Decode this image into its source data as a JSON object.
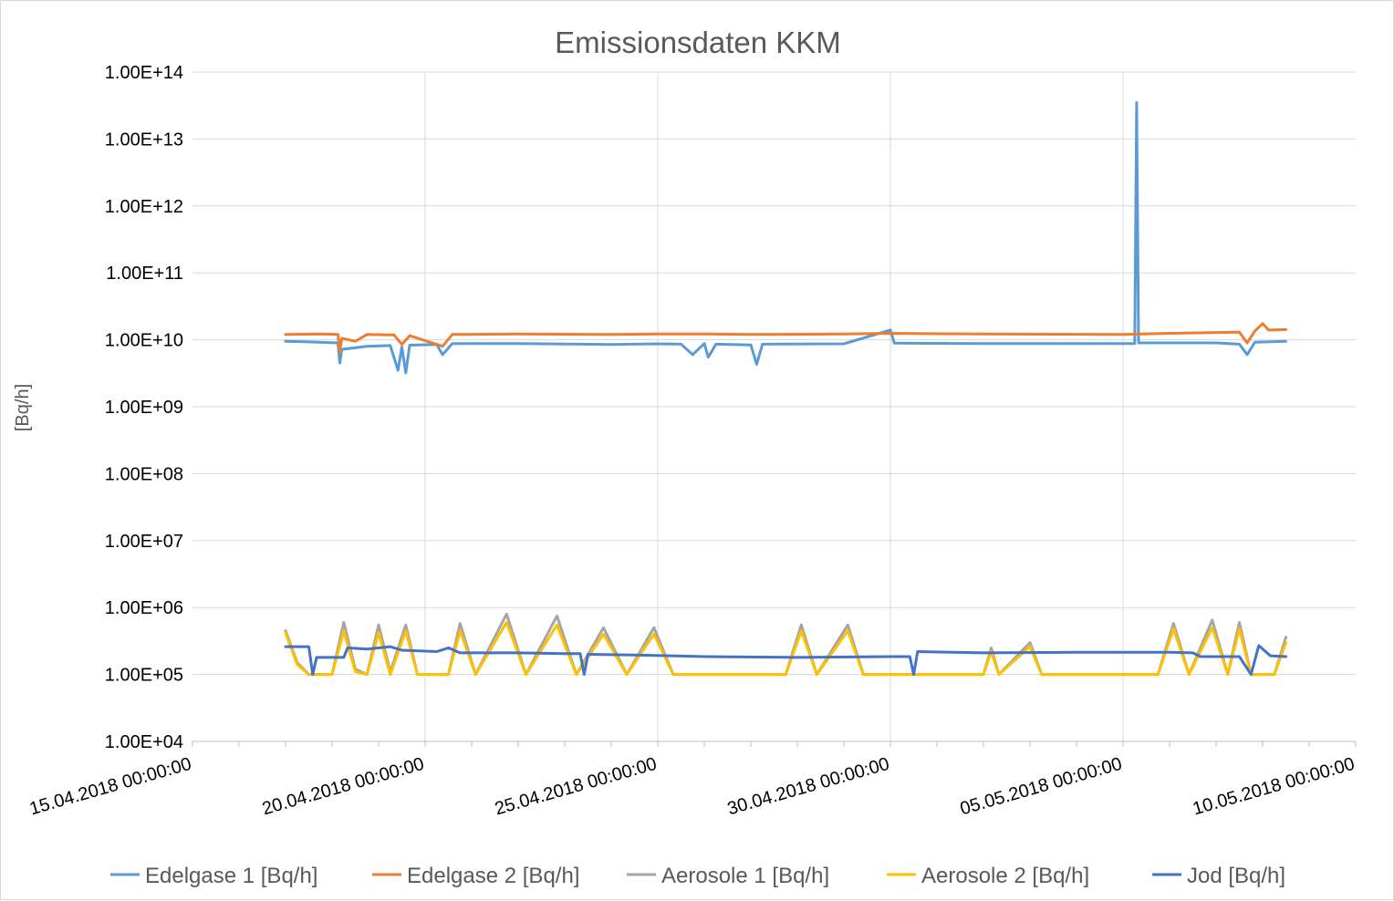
{
  "chart_data": {
    "type": "line",
    "title": "Emissionsdaten KKM",
    "xlabel": "",
    "ylabel": "[Bq/h]",
    "y_scale": "log",
    "ylim": [
      10000,
      100000000000000
    ],
    "y_tick_labels": [
      "1.00E+04",
      "1.00E+05",
      "1.00E+06",
      "1.00E+07",
      "1.00E+08",
      "1.00E+09",
      "1.00E+10",
      "1.00E+11",
      "1.00E+12",
      "1.00E+13",
      "1.00E+14"
    ],
    "x_tick_labels": [
      "15.04.2018 00:00:00",
      "20.04.2018 00:00:00",
      "25.04.2018 00:00:00",
      "30.04.2018 00:00:00",
      "05.05.2018 00:00:00",
      "10.05.2018 00:00:00"
    ],
    "x_range": [
      "2018-04-15",
      "2018-05-10"
    ],
    "grid": true,
    "legend_position": "bottom",
    "series": [
      {
        "name": "Edelgase 1 [Bq/h]",
        "color": "#5b9bd5",
        "points": [
          [
            "2018-04-17 00:00",
            9500000000.0
          ],
          [
            "2018-04-17 12:00",
            9300000000.0
          ],
          [
            "2018-04-18 03:00",
            9000000000.0
          ],
          [
            "2018-04-18 04:00",
            4500000000.0
          ],
          [
            "2018-04-18 05:00",
            7200000000.0
          ],
          [
            "2018-04-18 18:00",
            8000000000.0
          ],
          [
            "2018-04-19 06:00",
            8200000000.0
          ],
          [
            "2018-04-19 10:00",
            3500000000.0
          ],
          [
            "2018-04-19 12:00",
            7800000000.0
          ],
          [
            "2018-04-19 14:00",
            3200000000.0
          ],
          [
            "2018-04-19 16:00",
            8300000000.0
          ],
          [
            "2018-04-20 06:00",
            8500000000.0
          ],
          [
            "2018-04-20 09:00",
            6000000000.0
          ],
          [
            "2018-04-20 14:00",
            8800000000.0
          ],
          [
            "2018-04-22 00:00",
            8800000000.0
          ],
          [
            "2018-04-24 00:00",
            8500000000.0
          ],
          [
            "2018-04-25 00:00",
            8700000000.0
          ],
          [
            "2018-04-25 12:00",
            8600000000.0
          ],
          [
            "2018-04-25 18:00",
            6000000000.0
          ],
          [
            "2018-04-26 00:00",
            8800000000.0
          ],
          [
            "2018-04-26 02:00",
            5500000000.0
          ],
          [
            "2018-04-26 06:00",
            8600000000.0
          ],
          [
            "2018-04-27 00:00",
            8400000000.0
          ],
          [
            "2018-04-27 03:00",
            4300000000.0
          ],
          [
            "2018-04-27 06:00",
            8600000000.0
          ],
          [
            "2018-04-29 00:00",
            8700000000.0
          ],
          [
            "2018-04-30 00:00",
            14000000000.0
          ],
          [
            "2018-04-30 02:00",
            8900000000.0
          ],
          [
            "2018-05-02 00:00",
            8800000000.0
          ],
          [
            "2018-05-05 06:00",
            8800000000.0
          ],
          [
            "2018-05-05 07:00",
            35000000000000.0
          ],
          [
            "2018-05-05 08:00",
            9000000000.0
          ],
          [
            "2018-05-07 00:00",
            9000000000.0
          ],
          [
            "2018-05-07 12:00",
            8600000000.0
          ],
          [
            "2018-05-07 16:00",
            6000000000.0
          ],
          [
            "2018-05-07 20:00",
            9200000000.0
          ],
          [
            "2018-05-08 12:00",
            9500000000.0
          ]
        ]
      },
      {
        "name": "Edelgase 2 [Bq/h]",
        "color": "#ed7d31",
        "points": [
          [
            "2018-04-17 00:00",
            12000000000.0
          ],
          [
            "2018-04-17 18:00",
            12200000000.0
          ],
          [
            "2018-04-18 03:00",
            12000000000.0
          ],
          [
            "2018-04-18 04:00",
            6500000000.0
          ],
          [
            "2018-04-18 05:00",
            10500000000.0
          ],
          [
            "2018-04-18 12:00",
            9500000000.0
          ],
          [
            "2018-04-18 18:00",
            12000000000.0
          ],
          [
            "2018-04-19 08:00",
            11800000000.0
          ],
          [
            "2018-04-19 12:00",
            8500000000.0
          ],
          [
            "2018-04-19 16:00",
            11500000000.0
          ],
          [
            "2018-04-20 09:00",
            8000000000.0
          ],
          [
            "2018-04-20 14:00",
            12000000000.0
          ],
          [
            "2018-04-22 00:00",
            12200000000.0
          ],
          [
            "2018-04-24 00:00",
            12000000000.0
          ],
          [
            "2018-04-25 00:00",
            12200000000.0
          ],
          [
            "2018-04-26 00:00",
            12200000000.0
          ],
          [
            "2018-04-27 00:00",
            12000000000.0
          ],
          [
            "2018-04-29 00:00",
            12200000000.0
          ],
          [
            "2018-04-30 00:00",
            12500000000.0
          ],
          [
            "2018-05-02 00:00",
            12200000000.0
          ],
          [
            "2018-05-05 00:00",
            12000000000.0
          ],
          [
            "2018-05-06 00:00",
            12500000000.0
          ],
          [
            "2018-05-07 12:00",
            13000000000.0
          ],
          [
            "2018-05-07 16:00",
            9000000000.0
          ],
          [
            "2018-05-07 20:00",
            13500000000.0
          ],
          [
            "2018-05-08 00:00",
            17500000000.0
          ],
          [
            "2018-05-08 03:00",
            14000000000.0
          ],
          [
            "2018-05-08 12:00",
            14200000000.0
          ]
        ]
      },
      {
        "name": "Aerosole 1 [Bq/h]",
        "color": "#a5a5a5",
        "points": [
          [
            "2018-04-17 00:00",
            450000.0
          ],
          [
            "2018-04-17 06:00",
            150000.0
          ],
          [
            "2018-04-17 12:00",
            100000.0
          ],
          [
            "2018-04-18 00:00",
            100000.0
          ],
          [
            "2018-04-18 06:00",
            600000.0
          ],
          [
            "2018-04-18 12:00",
            120000.0
          ],
          [
            "2018-04-18 18:00",
            100000.0
          ],
          [
            "2018-04-19 00:00",
            550000.0
          ],
          [
            "2018-04-19 06:00",
            110000.0
          ],
          [
            "2018-04-19 14:00",
            550000.0
          ],
          [
            "2018-04-19 20:00",
            100000.0
          ],
          [
            "2018-04-20 12:00",
            100000.0
          ],
          [
            "2018-04-20 18:00",
            580000.0
          ],
          [
            "2018-04-21 02:00",
            100000.0
          ],
          [
            "2018-04-21 18:00",
            800000.0
          ],
          [
            "2018-04-22 04:00",
            100000.0
          ],
          [
            "2018-04-22 20:00",
            750000.0
          ],
          [
            "2018-04-23 06:00",
            100000.0
          ],
          [
            "2018-04-23 20:00",
            500000.0
          ],
          [
            "2018-04-24 08:00",
            100000.0
          ],
          [
            "2018-04-24 22:00",
            500000.0
          ],
          [
            "2018-04-25 08:00",
            100000.0
          ],
          [
            "2018-04-27 18:00",
            100000.0
          ],
          [
            "2018-04-28 02:00",
            550000.0
          ],
          [
            "2018-04-28 10:00",
            100000.0
          ],
          [
            "2018-04-29 02:00",
            550000.0
          ],
          [
            "2018-04-29 10:00",
            100000.0
          ],
          [
            "2018-05-02 00:00",
            100000.0
          ],
          [
            "2018-05-02 04:00",
            250000.0
          ],
          [
            "2018-05-02 08:00",
            100000.0
          ],
          [
            "2018-05-03 00:00",
            300000.0
          ],
          [
            "2018-05-03 06:00",
            100000.0
          ],
          [
            "2018-05-05 18:00",
            100000.0
          ],
          [
            "2018-05-06 02:00",
            580000.0
          ],
          [
            "2018-05-06 10:00",
            100000.0
          ],
          [
            "2018-05-06 22:00",
            650000.0
          ],
          [
            "2018-05-07 06:00",
            100000.0
          ],
          [
            "2018-05-07 12:00",
            600000.0
          ],
          [
            "2018-05-07 18:00",
            100000.0
          ],
          [
            "2018-05-08 06:00",
            100000.0
          ],
          [
            "2018-05-08 12:00",
            360000.0
          ]
        ]
      },
      {
        "name": "Aerosole 2 [Bq/h]",
        "color": "#ffc000",
        "points": [
          [
            "2018-04-17 00:00",
            420000.0
          ],
          [
            "2018-04-17 06:00",
            140000.0
          ],
          [
            "2018-04-17 12:00",
            100000.0
          ],
          [
            "2018-04-18 00:00",
            100000.0
          ],
          [
            "2018-04-18 06:00",
            450000.0
          ],
          [
            "2018-04-18 12:00",
            110000.0
          ],
          [
            "2018-04-18 18:00",
            100000.0
          ],
          [
            "2018-04-19 00:00",
            420000.0
          ],
          [
            "2018-04-19 06:00",
            100000.0
          ],
          [
            "2018-04-19 14:00",
            450000.0
          ],
          [
            "2018-04-19 20:00",
            100000.0
          ],
          [
            "2018-04-20 12:00",
            100000.0
          ],
          [
            "2018-04-20 18:00",
            450000.0
          ],
          [
            "2018-04-21 02:00",
            100000.0
          ],
          [
            "2018-04-21 18:00",
            600000.0
          ],
          [
            "2018-04-22 04:00",
            100000.0
          ],
          [
            "2018-04-22 20:00",
            550000.0
          ],
          [
            "2018-04-23 06:00",
            100000.0
          ],
          [
            "2018-04-23 20:00",
            400000.0
          ],
          [
            "2018-04-24 08:00",
            100000.0
          ],
          [
            "2018-04-24 22:00",
            400000.0
          ],
          [
            "2018-04-25 08:00",
            100000.0
          ],
          [
            "2018-04-27 18:00",
            100000.0
          ],
          [
            "2018-04-28 02:00",
            450000.0
          ],
          [
            "2018-04-28 10:00",
            100000.0
          ],
          [
            "2018-04-29 02:00",
            450000.0
          ],
          [
            "2018-04-29 10:00",
            100000.0
          ],
          [
            "2018-05-02 00:00",
            100000.0
          ],
          [
            "2018-05-02 04:00",
            220000.0
          ],
          [
            "2018-05-02 08:00",
            100000.0
          ],
          [
            "2018-05-03 00:00",
            260000.0
          ],
          [
            "2018-05-03 06:00",
            100000.0
          ],
          [
            "2018-05-05 18:00",
            100000.0
          ],
          [
            "2018-05-06 02:00",
            480000.0
          ],
          [
            "2018-05-06 10:00",
            100000.0
          ],
          [
            "2018-05-06 22:00",
            500000.0
          ],
          [
            "2018-05-07 06:00",
            100000.0
          ],
          [
            "2018-05-07 12:00",
            480000.0
          ],
          [
            "2018-05-07 18:00",
            100000.0
          ],
          [
            "2018-05-08 06:00",
            100000.0
          ],
          [
            "2018-05-08 12:00",
            300000.0
          ]
        ]
      },
      {
        "name": "Jod [Bq/h]",
        "color": "#4472c4",
        "points": [
          [
            "2018-04-17 00:00",
            260000.0
          ],
          [
            "2018-04-17 12:00",
            260000.0
          ],
          [
            "2018-04-17 14:00",
            100000.0
          ],
          [
            "2018-04-17 16:00",
            180000.0
          ],
          [
            "2018-04-18 06:00",
            180000.0
          ],
          [
            "2018-04-18 08:00",
            250000.0
          ],
          [
            "2018-04-18 18:00",
            240000.0
          ],
          [
            "2018-04-19 06:00",
            260000.0
          ],
          [
            "2018-04-19 12:00",
            230000.0
          ],
          [
            "2018-04-20 06:00",
            220000.0
          ],
          [
            "2018-04-20 12:00",
            250000.0
          ],
          [
            "2018-04-20 18:00",
            210000.0
          ],
          [
            "2018-04-22 00:00",
            210000.0
          ],
          [
            "2018-04-23 00:00",
            205000.0
          ],
          [
            "2018-04-23 08:00",
            205000.0
          ],
          [
            "2018-04-23 10:00",
            100000.0
          ],
          [
            "2018-04-23 12:00",
            200000.0
          ],
          [
            "2018-04-24 12:00",
            195000.0
          ],
          [
            "2018-04-26 00:00",
            185000.0
          ],
          [
            "2018-04-28 00:00",
            180000.0
          ],
          [
            "2018-04-30 00:00",
            185000.0
          ],
          [
            "2018-04-30 10:00",
            185000.0
          ],
          [
            "2018-04-30 12:00",
            100000.0
          ],
          [
            "2018-04-30 14:00",
            220000.0
          ],
          [
            "2018-05-02 00:00",
            210000.0
          ],
          [
            "2018-05-04 00:00",
            215000.0
          ],
          [
            "2018-05-06 00:00",
            215000.0
          ],
          [
            "2018-05-06 12:00",
            210000.0
          ],
          [
            "2018-05-06 16:00",
            185000.0
          ],
          [
            "2018-05-07 12:00",
            185000.0
          ],
          [
            "2018-05-07 18:00",
            100000.0
          ],
          [
            "2018-05-07 22:00",
            270000.0
          ],
          [
            "2018-05-08 04:00",
            190000.0
          ],
          [
            "2018-05-08 12:00",
            185000.0
          ]
        ]
      }
    ]
  }
}
